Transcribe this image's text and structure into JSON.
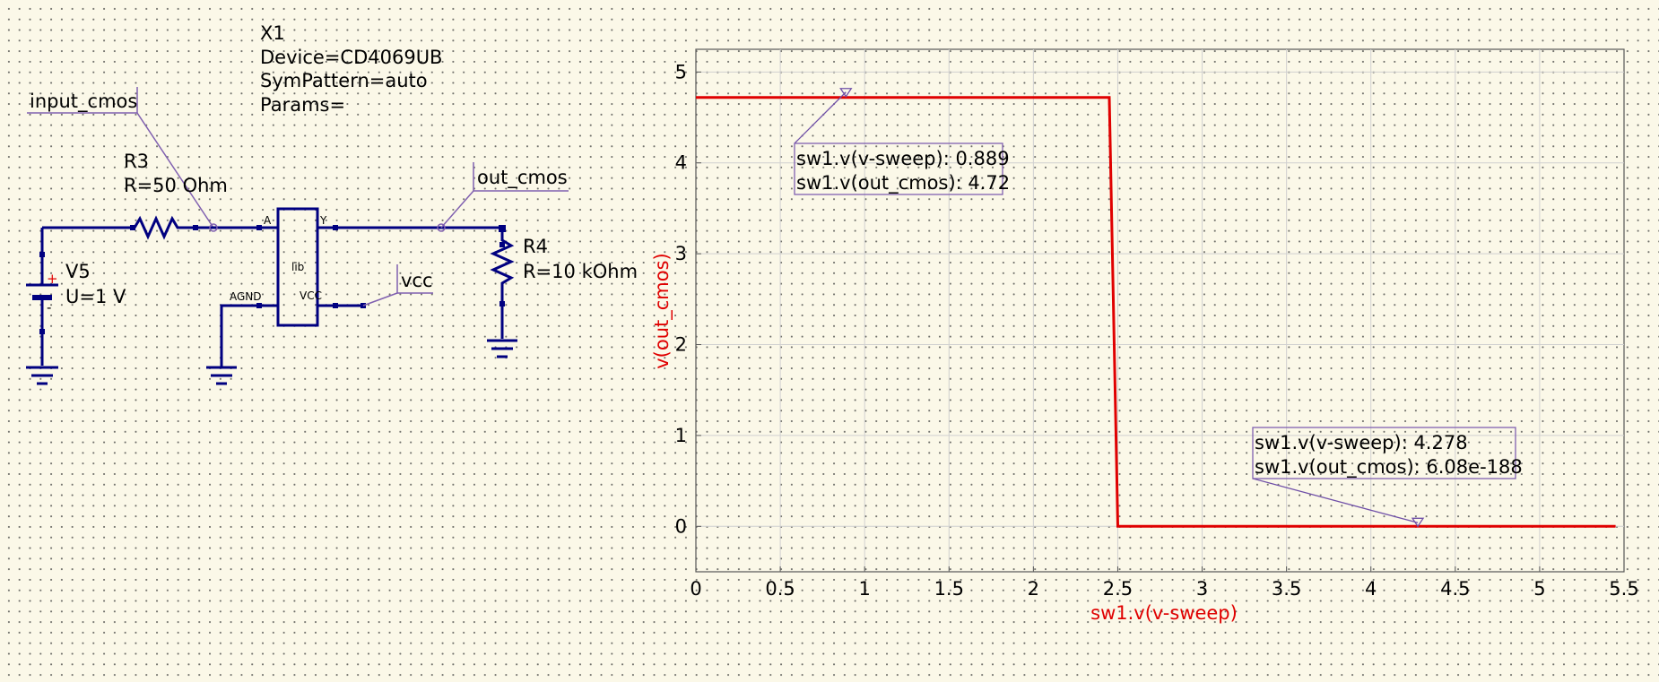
{
  "schematic": {
    "device": {
      "name": "X1",
      "device": "Device=CD4069UB",
      "sympattern": "SymPattern=auto",
      "params": "Params=",
      "body_label": "lib",
      "pins": {
        "a": "A",
        "y": "Y",
        "agnd": "AGND",
        "vcc": "VCC"
      }
    },
    "resistor_r3": {
      "name": "R3",
      "value": "R=50 Ohm"
    },
    "resistor_r4": {
      "name": "R4",
      "value": "R=10 kOhm"
    },
    "source_v5": {
      "name": "V5",
      "value": "U=1 V",
      "plus": "+"
    },
    "labels": {
      "input": "input_cmos",
      "output": "out_cmos",
      "vcc": "vcc"
    },
    "colors": {
      "wire": "#000080",
      "label_line": "#8060b0",
      "background": "#fbf8e8"
    }
  },
  "chart_data": {
    "type": "line",
    "xlabel": "sw1.v(v-sweep)",
    "ylabel": "v(out_cmos)",
    "xlim": [
      0,
      5.5
    ],
    "ylim": [
      -0.5,
      5.25
    ],
    "grid": true,
    "x_ticks": [
      "0",
      "0.5",
      "1",
      "1.5",
      "2",
      "2.5",
      "3",
      "3.5",
      "4",
      "4.5",
      "5",
      "5.5"
    ],
    "y_ticks": [
      "0",
      "1",
      "2",
      "3",
      "4",
      "5"
    ],
    "series": [
      {
        "color": "#e00000",
        "x": [
          0,
          2.45,
          2.5,
          5.45
        ],
        "y": [
          4.72,
          4.72,
          0,
          0
        ]
      }
    ],
    "markers": [
      {
        "x": 0.889,
        "y": 4.72,
        "line1": "sw1.v(v-sweep): 0.889",
        "line2": "sw1.v(out_cmos): 4.72"
      },
      {
        "x": 4.278,
        "y": 0,
        "line1": "sw1.v(v-sweep): 4.278",
        "line2": "sw1.v(out_cmos): 6.08e-188"
      }
    ]
  }
}
